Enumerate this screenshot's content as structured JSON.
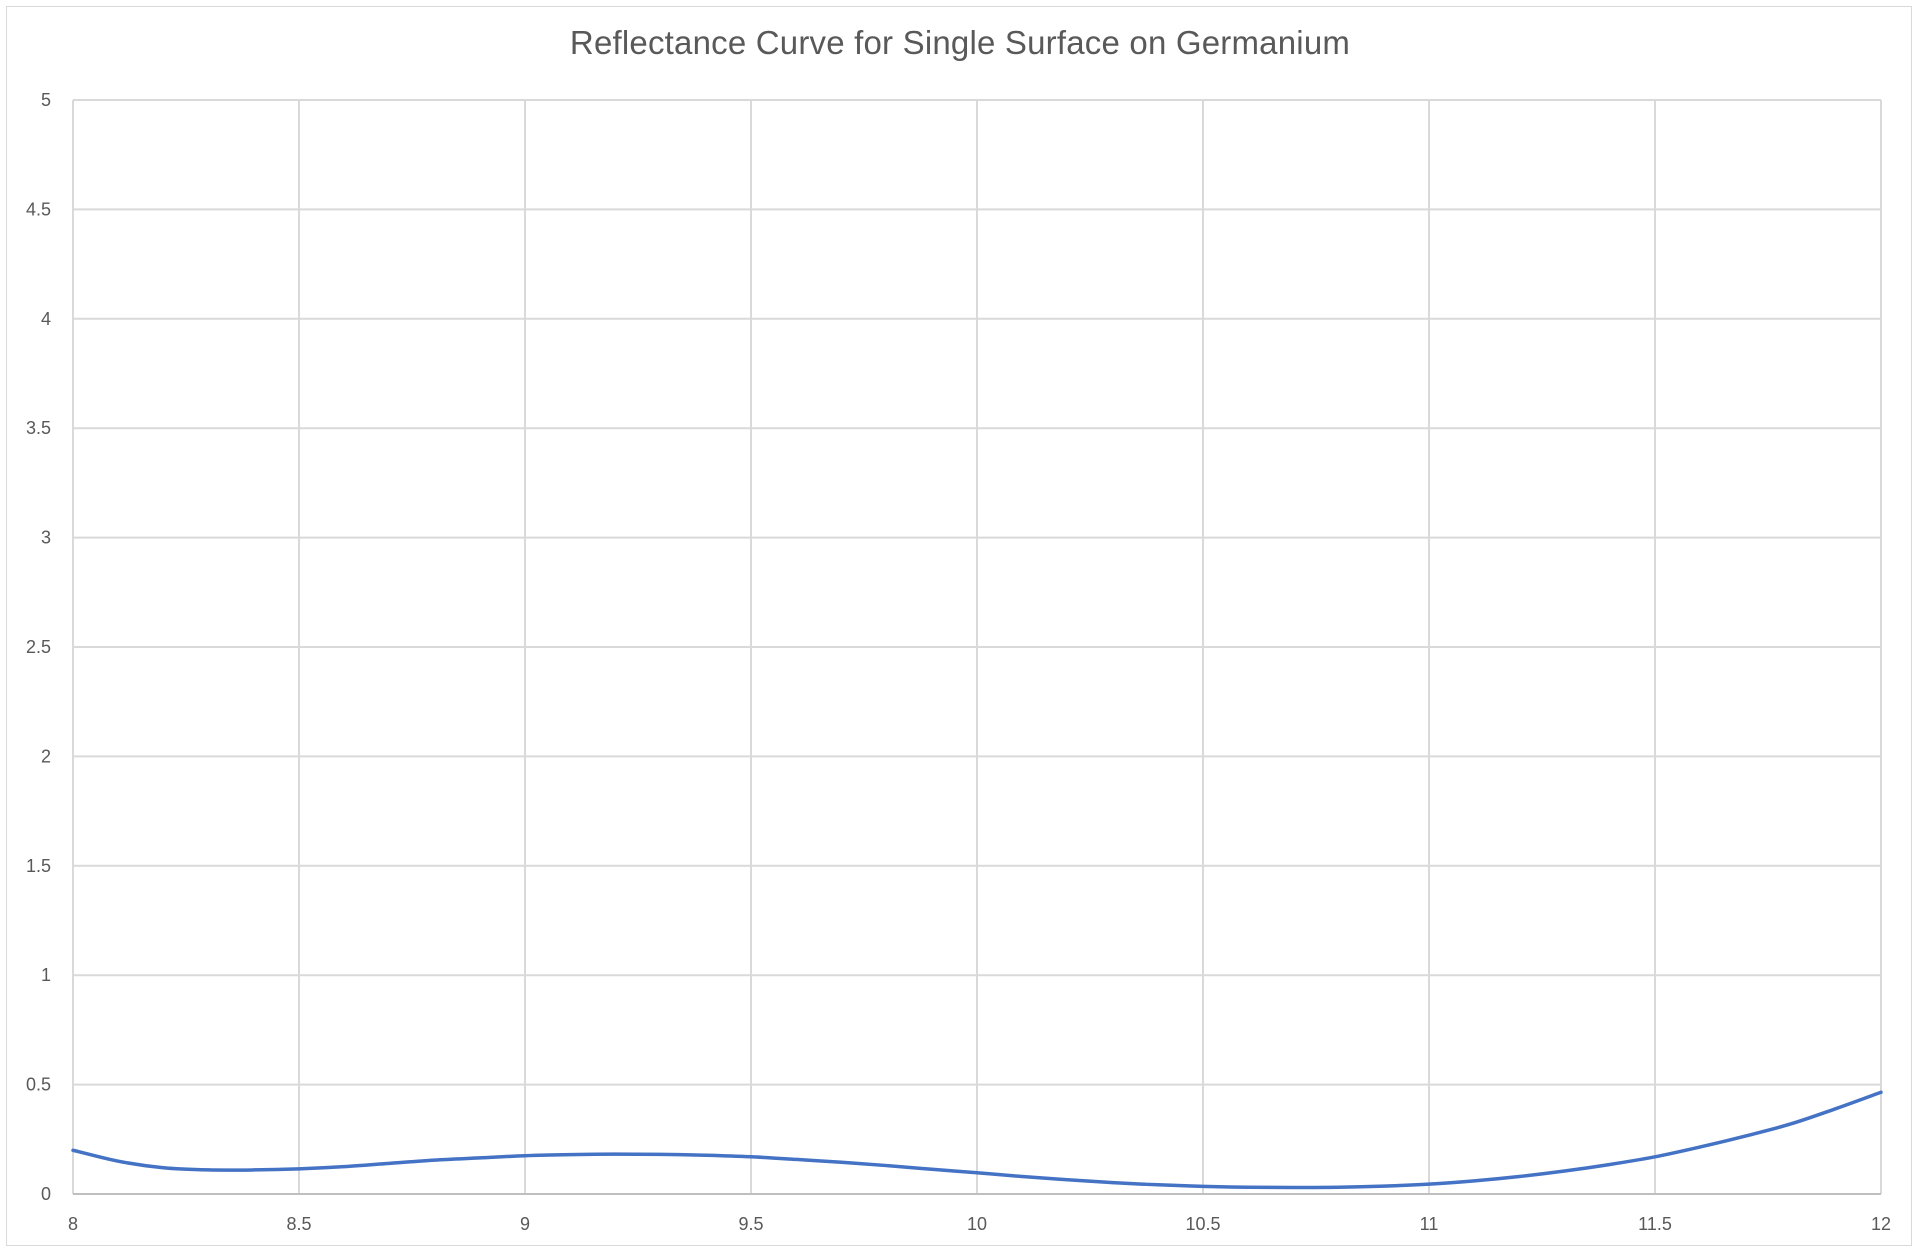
{
  "chart_data": {
    "type": "line",
    "title": "Reflectance Curve for Single Surface on Germanium",
    "xlabel": "",
    "ylabel": "",
    "xlim": [
      8,
      12
    ],
    "ylim": [
      0,
      5
    ],
    "x_ticks": [
      "8",
      "8.5",
      "9",
      "9.5",
      "10",
      "10.5",
      "11",
      "11.5",
      "12"
    ],
    "y_ticks": [
      "0",
      "0.5",
      "1",
      "1.5",
      "2",
      "2.5",
      "3",
      "3.5",
      "4",
      "4.5",
      "5"
    ],
    "grid": true,
    "legend": "none",
    "series": [
      {
        "color": "#4472c4",
        "smooth": true,
        "x": [
          8.0,
          8.1,
          8.2,
          8.3,
          8.4,
          8.5,
          8.6,
          8.7,
          8.8,
          8.9,
          9.0,
          9.1,
          9.2,
          9.3,
          9.4,
          9.5,
          9.6,
          9.7,
          9.8,
          9.9,
          10.0,
          10.1,
          10.2,
          10.3,
          10.4,
          10.5,
          10.6,
          10.7,
          10.8,
          10.9,
          11.0,
          11.1,
          11.2,
          11.3,
          11.4,
          11.5,
          11.6,
          11.7,
          11.8,
          11.9,
          12.0
        ],
        "y": [
          0.2,
          0.15,
          0.12,
          0.11,
          0.11,
          0.115,
          0.125,
          0.14,
          0.155,
          0.165,
          0.175,
          0.18,
          0.182,
          0.181,
          0.177,
          0.17,
          0.158,
          0.145,
          0.13,
          0.113,
          0.097,
          0.08,
          0.065,
          0.052,
          0.042,
          0.035,
          0.031,
          0.03,
          0.031,
          0.036,
          0.045,
          0.06,
          0.08,
          0.105,
          0.135,
          0.17,
          0.215,
          0.265,
          0.32,
          0.39,
          0.465
        ]
      }
    ]
  }
}
